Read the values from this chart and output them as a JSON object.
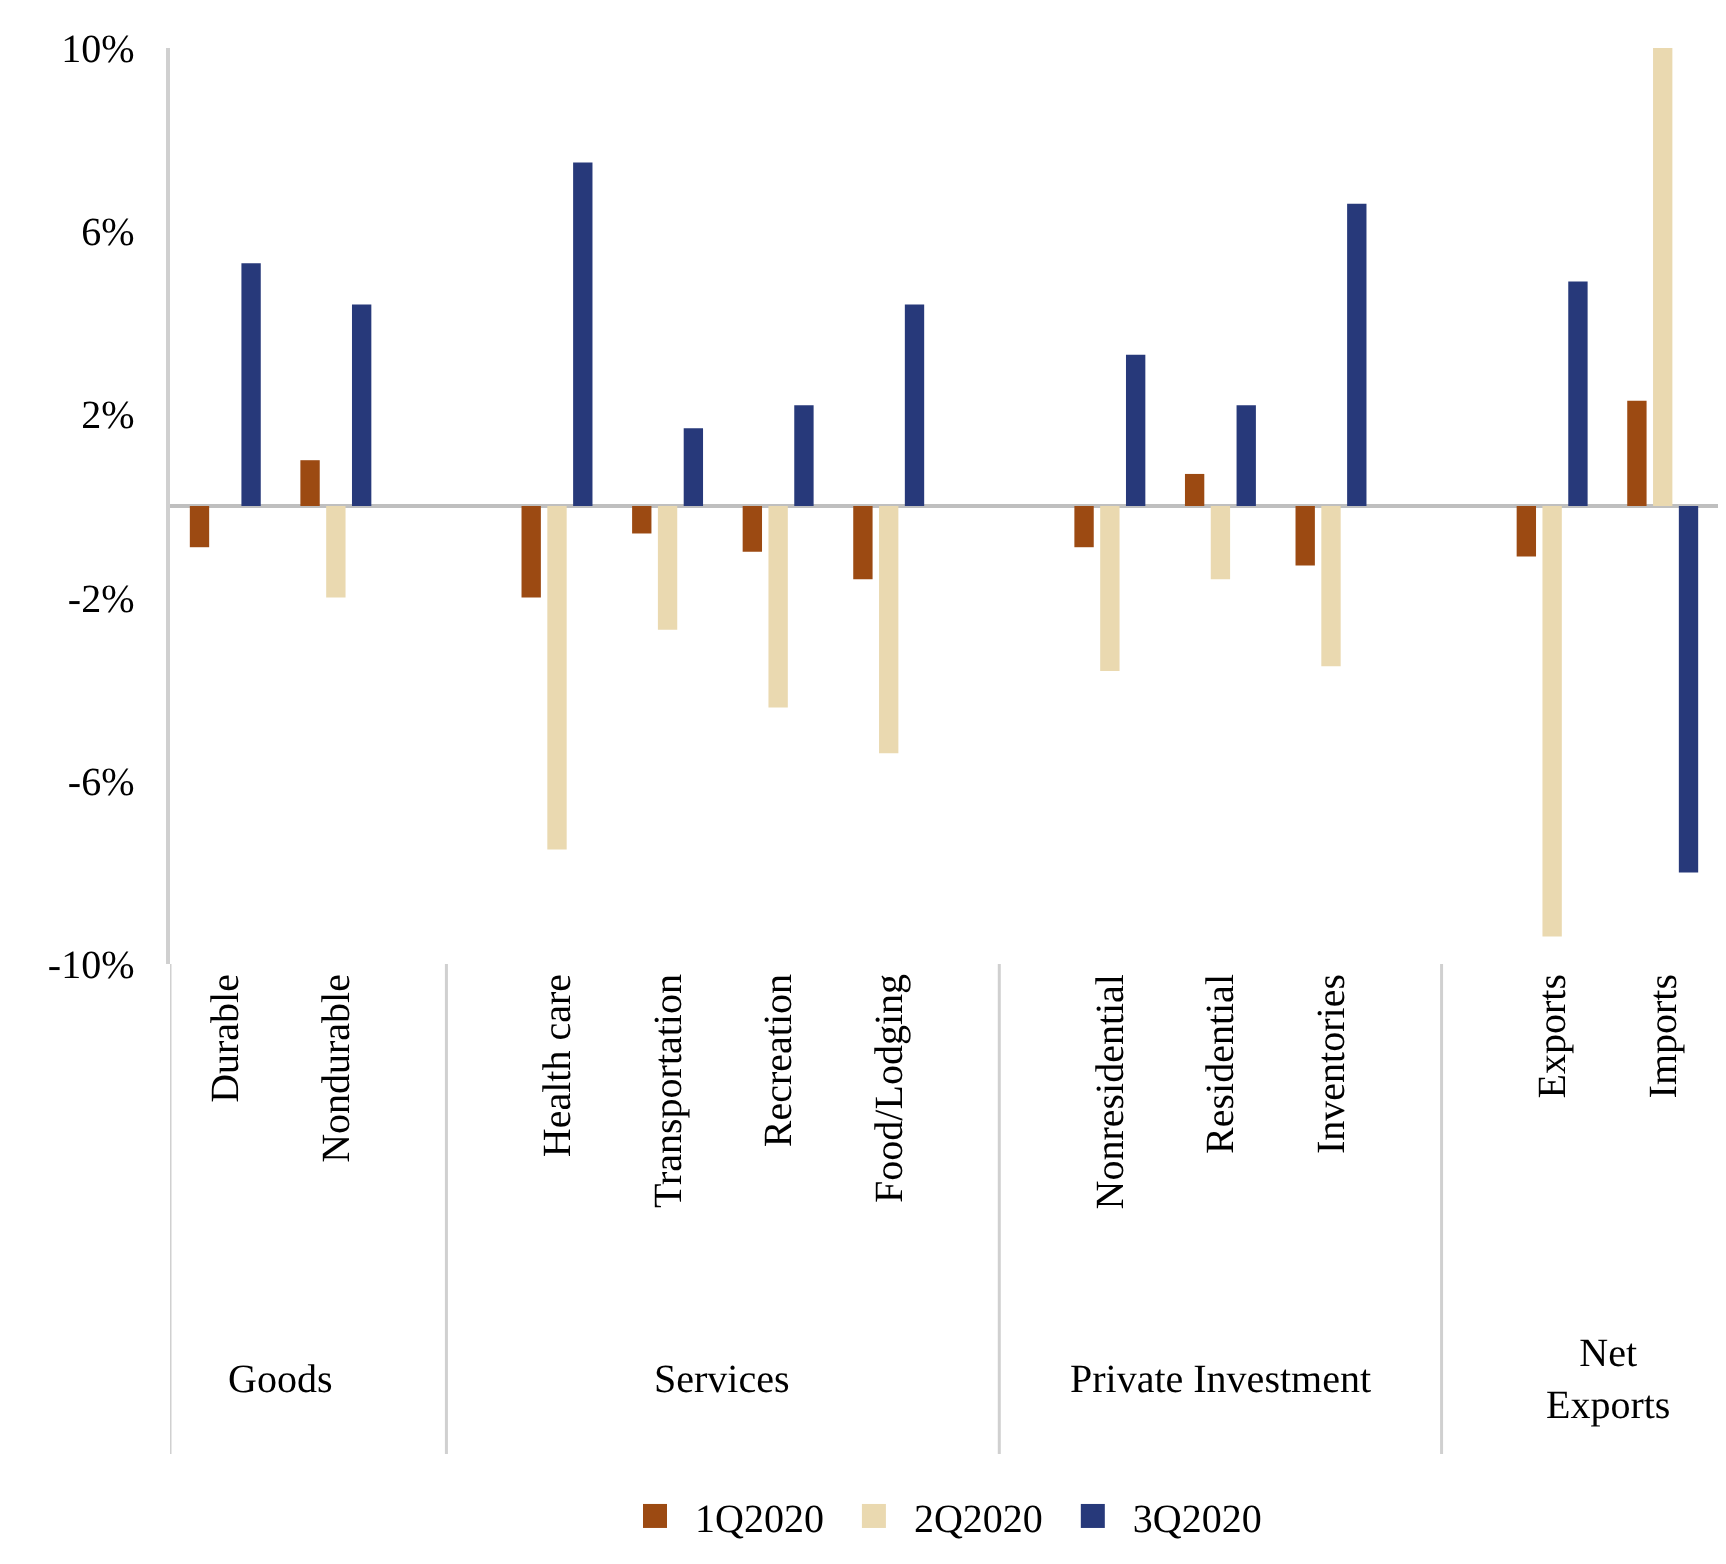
{
  "chart_data": {
    "type": "bar",
    "categories": [
      "Durable",
      "Nondurable",
      null,
      "Health care",
      "Transportation",
      "Recreation",
      "Food/Lodging",
      null,
      "Nonresidential",
      "Residential",
      "Inventories",
      null,
      "Exports",
      "Imports"
    ],
    "series": [
      {
        "name": "1Q2020",
        "color": "#9c4a12",
        "values": [
          -0.9,
          1.0,
          null,
          -2.0,
          -0.6,
          -1.0,
          -1.6,
          null,
          -0.9,
          0.7,
          -1.3,
          null,
          -1.1,
          2.3
        ]
      },
      {
        "name": "2Q2020",
        "color": "#ead9b0",
        "values": [
          0,
          -2.0,
          null,
          -7.5,
          -2.7,
          -4.4,
          -5.4,
          null,
          -3.6,
          -1.6,
          -3.5,
          null,
          -9.4,
          10
        ]
      },
      {
        "name": "3Q2020",
        "color": "#27397a",
        "values": [
          5.3,
          4.4,
          null,
          7.5,
          1.7,
          2.2,
          4.4,
          null,
          3.3,
          2.2,
          6.6,
          null,
          4.9,
          -8.0
        ]
      }
    ],
    "annotations": [
      "Goods",
      "Services",
      "Private Investment",
      "Net Exports"
    ],
    "ylim": [
      -10,
      10
    ],
    "yticks": [
      {
        "value": 10,
        "label": "10%"
      },
      {
        "value": 6,
        "label": "6%"
      },
      {
        "value": 2,
        "label": "2%"
      },
      {
        "value": -2,
        "label": "-2%"
      },
      {
        "value": -6,
        "label": "-6%"
      },
      {
        "value": -10,
        "label": "-10%"
      }
    ],
    "legend": "bottom"
  }
}
